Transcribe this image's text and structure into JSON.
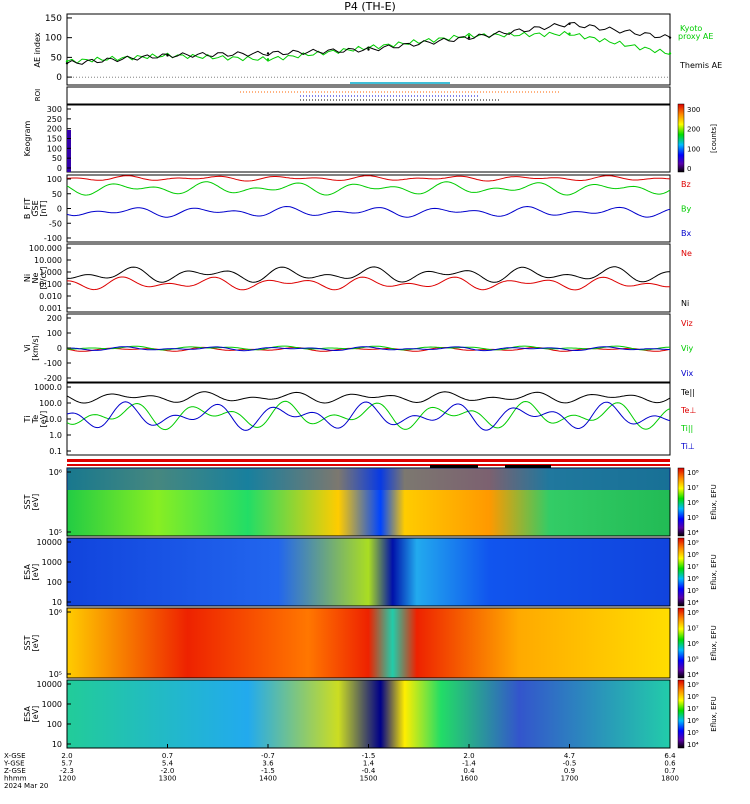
{
  "title": "P4 (TH-E)",
  "footer": {
    "row_labels": [
      "X-GSE",
      "Y-GSE",
      "Z-GSE",
      "hhmm",
      "2024 Mar 20"
    ],
    "columns": [
      {
        "x": "2.0",
        "y": "5.7",
        "z": "-2.3",
        "t": "1200"
      },
      {
        "x": "0.7",
        "y": "5.4",
        "z": "-2.0",
        "t": "1300"
      },
      {
        "x": "-0.7",
        "y": "3.6",
        "z": "-1.5",
        "t": "1400"
      },
      {
        "x": "-1.5",
        "y": "1.4",
        "z": "-0.4",
        "t": "1500"
      },
      {
        "x": "2.0",
        "y": "-1.4",
        "z": "0.4",
        "t": "1600"
      },
      {
        "x": "4.7",
        "y": "-0.5",
        "z": "0.9",
        "t": "1700"
      },
      {
        "x": "6.4",
        "y": "0.6",
        "z": "0.7",
        "t": "1800"
      }
    ]
  },
  "colors": {
    "black": "#000000",
    "red": "#dd0000",
    "green": "#00cc00",
    "blue": "#0000cc",
    "cyan": "#00aacc"
  },
  "panels": {
    "ae": {
      "ylabel": "AE index",
      "yticks": [
        "150",
        "100",
        "50",
        "0"
      ],
      "legend": [
        "Kyoto",
        "proxy AE",
        "Themis AE"
      ],
      "chart_data": {
        "type": "line",
        "x": [
          "1200",
          "1300",
          "1400",
          "1500",
          "1600",
          "1700",
          "1800"
        ],
        "ylim": [
          -20,
          160
        ],
        "series": [
          {
            "name": "Kyoto proxy AE",
            "values": [
              40,
              55,
              45,
              75,
              105,
              110,
              60
            ]
          },
          {
            "name": "Themis AE",
            "values": [
              35,
              55,
              60,
              70,
              100,
              135,
              100
            ]
          }
        ]
      }
    },
    "roi": {
      "ylabel": "ROI"
    },
    "keogram": {
      "ylabel": "Keogram",
      "yticks": [
        "300",
        "250",
        "200",
        "150",
        "100",
        "50",
        "0"
      ],
      "colorbar": {
        "label": "[counts]",
        "ticks": [
          "300",
          "200",
          "100",
          "0"
        ]
      }
    },
    "bfit": {
      "ylabel": [
        "B_FIT",
        "GSE",
        "[nT]"
      ],
      "yticks": [
        "100",
        "50",
        "0",
        "-50",
        "-100"
      ],
      "legend": [
        "Bz",
        "By",
        "Bx"
      ]
    },
    "ni": {
      "ylabel": [
        "Ni",
        "Ne",
        "[1/cc]"
      ],
      "yticks": [
        "100.000",
        "10.000",
        "1.000",
        "0.100",
        "0.010",
        "0.001"
      ],
      "legend": [
        "Ne",
        "Ni"
      ]
    },
    "vi": {
      "ylabel": [
        "Vi",
        "[km/s]"
      ],
      "yticks": [
        "200",
        "100",
        "0",
        "-100",
        "-200"
      ],
      "legend": [
        "Viz",
        "Viy",
        "Vix"
      ]
    },
    "ti": {
      "ylabel": [
        "Ti",
        "Te",
        "[eV]"
      ],
      "yticks": [
        "1000.0",
        "100.0",
        "10.0",
        "1.0",
        "0.1"
      ],
      "legend": [
        "Te||",
        "Te⊥",
        "Ti||",
        "Ti⊥"
      ]
    },
    "sst_e": {
      "ylabel": [
        "SST",
        "[eV]"
      ],
      "yticks": [
        "10⁶",
        "10⁵"
      ],
      "colorbar": {
        "label": "Eflux, EFU",
        "ticks": [
          "10⁸",
          "10⁷",
          "10⁶",
          "10⁵",
          "10⁴"
        ]
      }
    },
    "esa_e": {
      "ylabel": [
        "ESA",
        "[eV]"
      ],
      "yticks": [
        "10000",
        "1000",
        "100",
        "10"
      ],
      "colorbar": {
        "label": "Eflux, EFU",
        "ticks": [
          "10⁹",
          "10⁸",
          "10⁷",
          "10⁶",
          "10⁵",
          "10⁴"
        ]
      }
    },
    "sst_i": {
      "ylabel": [
        "SST",
        "[eV]"
      ],
      "yticks": [
        "10⁶",
        "10⁵"
      ],
      "colorbar": {
        "label": "Eflux, EFU",
        "ticks": [
          "10⁸",
          "10⁷",
          "10⁶",
          "10⁵",
          "10⁴"
        ]
      }
    },
    "esa_i": {
      "ylabel": [
        "ESA",
        "[eV]"
      ],
      "yticks": [
        "10000",
        "1000",
        "100",
        "10"
      ],
      "colorbar": {
        "label": "Eflux, EFU",
        "ticks": [
          "10⁹",
          "10⁸",
          "10⁷",
          "10⁶",
          "10⁵",
          "10⁴"
        ]
      }
    }
  }
}
